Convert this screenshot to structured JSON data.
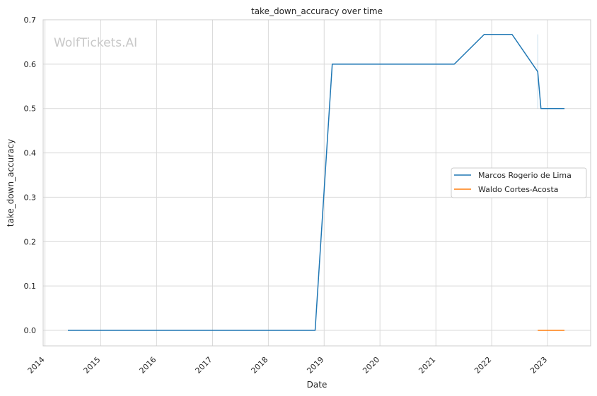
{
  "chart_data": {
    "type": "line",
    "title": "take_down_accuracy over time",
    "xlabel": "Date",
    "ylabel": "take_down_accuracy",
    "watermark": "WolfTickets.AI",
    "xlim": [
      "2013-12-20",
      "2023-10-10"
    ],
    "ylim": [
      -0.035,
      0.7
    ],
    "x_ticks": [
      "2014",
      "2015",
      "2016",
      "2017",
      "2018",
      "2019",
      "2020",
      "2021",
      "2022",
      "2023"
    ],
    "y_ticks": [
      "0.0",
      "0.1",
      "0.2",
      "0.3",
      "0.4",
      "0.5",
      "0.6",
      "0.7"
    ],
    "grid": true,
    "legend_position": "center-right",
    "series": [
      {
        "name": "Marcos Rogerio de Lima",
        "color": "#1f77b4",
        "points": [
          [
            "2014-05-31",
            0.0
          ],
          [
            "2018-11-03",
            0.0
          ],
          [
            "2019-02-23",
            0.6
          ],
          [
            "2021-05-01",
            0.6
          ],
          [
            "2021-11-13",
            0.667
          ],
          [
            "2022-05-14",
            0.667
          ],
          [
            "2022-10-29",
            0.583
          ],
          [
            "2022-11-19",
            0.5
          ],
          [
            "2023-04-22",
            0.5
          ]
        ],
        "band": {
          "x": "2022-10-29",
          "low": 0.5,
          "high": 0.667
        }
      },
      {
        "name": "Waldo Cortes-Acosta",
        "color": "#ff7f0e",
        "points": [
          [
            "2022-10-29",
            0.0
          ],
          [
            "2023-04-22",
            0.0
          ]
        ]
      }
    ]
  }
}
